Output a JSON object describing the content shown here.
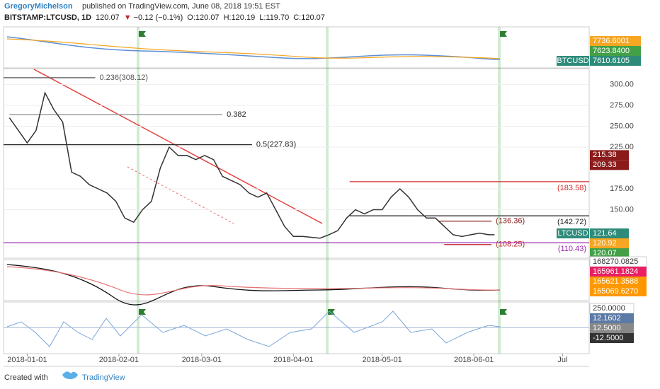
{
  "header": {
    "author": "GregoryMichelson",
    "published": "published on TradingView.com, June 08, 2018 19:51 EST",
    "legend": [
      {
        "text": "BITSTAMP:LTCUSD, 1D",
        "color": "#222"
      },
      {
        "text": "120.07",
        "color": "#222"
      },
      {
        "text": "▼",
        "color": "#c62828"
      },
      {
        "text": "−0.12 (−0.1%)",
        "color": "#222"
      },
      {
        "text": "O:120.07",
        "color": "#222"
      },
      {
        "text": "H:120.19",
        "color": "#222"
      },
      {
        "text": "L:119.70",
        "color": "#222"
      },
      {
        "text": "C:120.07",
        "color": "#222"
      }
    ]
  },
  "chart_data": {
    "type": "line",
    "color": "#333",
    "x": [
      "2017-12-26",
      "2018-01-01",
      "2018-01-04",
      "2018-01-07",
      "2018-01-10",
      "2018-01-13",
      "2018-01-16",
      "2018-01-19",
      "2018-01-22",
      "2018-01-25",
      "2018-01-28",
      "2018-01-31",
      "2018-02-03",
      "2018-02-06",
      "2018-02-09",
      "2018-02-12",
      "2018-02-15",
      "2018-02-18",
      "2018-02-21",
      "2018-02-24",
      "2018-02-27",
      "2018-03-02",
      "2018-03-05",
      "2018-03-08",
      "2018-03-11",
      "2018-03-14",
      "2018-03-17",
      "2018-03-20",
      "2018-03-23",
      "2018-03-26",
      "2018-03-29",
      "2018-04-01",
      "2018-04-04",
      "2018-04-07",
      "2018-04-10",
      "2018-04-13",
      "2018-04-16",
      "2018-04-19",
      "2018-04-22",
      "2018-04-25",
      "2018-04-28",
      "2018-05-01",
      "2018-05-04",
      "2018-05-07",
      "2018-05-10",
      "2018-05-13",
      "2018-05-16",
      "2018-05-19",
      "2018-05-22",
      "2018-05-25",
      "2018-05-28",
      "2018-05-31",
      "2018-06-03",
      "2018-06-06",
      "2018-06-08"
    ],
    "values": [
      260,
      230,
      245,
      290,
      270,
      255,
      195,
      190,
      180,
      175,
      170,
      160,
      140,
      135,
      150,
      160,
      200,
      225,
      215,
      215,
      210,
      215,
      210,
      190,
      185,
      180,
      170,
      165,
      170,
      150,
      130,
      118,
      118,
      117,
      116,
      120,
      125,
      140,
      150,
      145,
      150,
      150,
      165,
      175,
      165,
      150,
      140,
      140,
      130,
      120,
      118,
      120,
      122,
      120,
      120.07
    ],
    "xlim": [
      "2017-12-24",
      "2018-07-10"
    ],
    "xticks": [
      "2018-01-01",
      "2018-02-01",
      "2018-03-01",
      "2018-04-01",
      "2018-05-01",
      "2018-06-01",
      {
        "value": "2018-07-01",
        "label": "Jul"
      }
    ],
    "ylim": [
      92,
      319
    ],
    "yticks": [
      {
        "value": 300,
        "label": "300.00"
      },
      {
        "value": 275,
        "label": "275.00"
      },
      {
        "value": 250,
        "label": "250.00"
      },
      {
        "value": 225,
        "label": "225.00"
      },
      {
        "value": 175,
        "label": "175.00"
      },
      {
        "value": 150,
        "label": "150.00"
      }
    ],
    "levels": [
      {
        "label": "0.236(308.12)",
        "value": 308.12,
        "color": "#555",
        "from": "2017-12-24",
        "to": "2018-01-24"
      },
      {
        "label": "0.382",
        "value": 264,
        "color": "#999",
        "from": "2017-12-26",
        "to": "2018-03-08"
      },
      {
        "label": "0.5(227.83)",
        "value": 227.83,
        "color": "#222",
        "from": "2017-12-24",
        "to": "2018-03-18"
      },
      {
        "label": "(183.58)",
        "value": 183.58,
        "color": "#d32f2f",
        "from": "2018-04-20",
        "to": "2018-07-10"
      },
      {
        "label": "(142.72)",
        "value": 142.72,
        "color": "#222",
        "from": "2018-04-20",
        "to": "2018-07-10"
      },
      {
        "label": "(136.36)",
        "value": 136.36,
        "color": "#8b1a1a",
        "from": "2018-05-20",
        "to": "2018-06-07"
      },
      {
        "label": "(108.25)",
        "value": 108.25,
        "color": "#c62828",
        "from": "2018-05-22",
        "to": "2018-06-07"
      },
      {
        "label": "(110.43)",
        "value": 110.43,
        "color": "#9c27b0",
        "from": "2017-12-24",
        "to": "2018-07-10"
      }
    ],
    "badges": [
      {
        "label": "215.38",
        "value": 215.38,
        "color": "#8b1a1a"
      },
      {
        "label": "209.33",
        "value": 209.33,
        "color": "#8b1a1a"
      },
      {
        "label": "121.64",
        "value": 121.64,
        "color": "#2e8b7a",
        "name": "LTCUSD"
      },
      {
        "label": "120.92",
        "value": 120.92,
        "color": "#f5a623"
      },
      {
        "label": "120.07",
        "value": 120.07,
        "color": "#43a047"
      }
    ]
  },
  "btc_panel": {
    "badges": [
      {
        "label": "7736.6001",
        "color": "#f5a623"
      },
      {
        "label": "7623.8400",
        "color": "#43a047"
      },
      {
        "label": "7610.6105",
        "color": "#2e8b7a",
        "name": "BTCUSD"
      }
    ]
  },
  "indicator_panel": {
    "badges": [
      {
        "label": "168270.0825",
        "color": "#ffffff"
      },
      {
        "label": "165961.1824",
        "color": "#e91e63"
      },
      {
        "label": "165621.3588",
        "color": "#ff9800"
      },
      {
        "label": "165069.6270",
        "color": "#ff9800"
      }
    ]
  },
  "oscillator_panel": {
    "badges": [
      {
        "label": "250.0000",
        "color": "#ffffff"
      },
      {
        "label": "12.1602",
        "color": "#5c7aa6"
      },
      {
        "label": "12.5000",
        "color": "#888888"
      },
      {
        "label": "-12.5000",
        "color": "#333333"
      }
    ]
  },
  "footer": {
    "created": "Created with",
    "brand": "TradingView"
  }
}
